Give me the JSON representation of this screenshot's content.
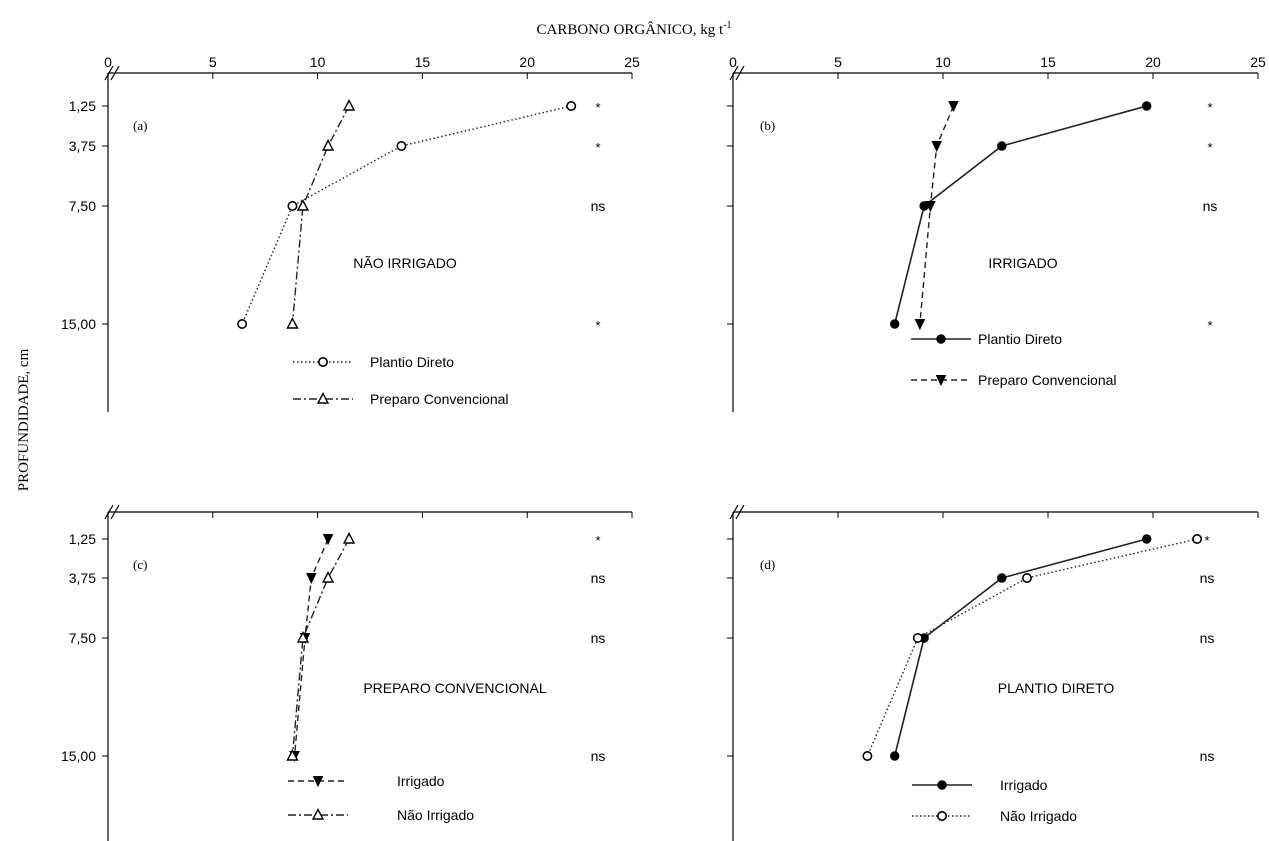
{
  "figure": {
    "xlabel_main": "CARBONO ORGÂNICO, kg t",
    "xlabel_sup": "-1",
    "ylabel": "PROFUNDIDADE, cm"
  },
  "chart_data": [
    {
      "type": "line",
      "panel_label": "(a)",
      "title": "NÃO IRRIGADO",
      "x_ticks": [
        "0",
        "5",
        "10",
        "15",
        "20",
        "25"
      ],
      "y_ticks": [
        "1,25",
        "3,75",
        "7,50",
        "15,00"
      ],
      "y": [
        1.25,
        3.75,
        7.5,
        15
      ],
      "xlim": [
        0,
        25
      ],
      "significance": [
        "*",
        "*",
        "ns",
        "*"
      ],
      "series": [
        {
          "name": "Plantio Direto",
          "x": [
            22.1,
            14.0,
            8.8,
            6.4
          ],
          "marker": "open-circle",
          "line": "dotted"
        },
        {
          "name": "Preparo Convencional",
          "x": [
            11.5,
            10.5,
            9.3,
            8.8
          ],
          "marker": "open-triangle",
          "line": "dash-dot"
        }
      ]
    },
    {
      "type": "line",
      "panel_label": "(b)",
      "title": "IRRIGADO",
      "x_ticks": [
        "0",
        "5",
        "10",
        "15",
        "20",
        "25"
      ],
      "y": [
        1.25,
        3.75,
        7.5,
        15
      ],
      "xlim": [
        0,
        25
      ],
      "significance": [
        "*",
        "*",
        "ns",
        "*"
      ],
      "series": [
        {
          "name": "Plantio Direto",
          "x": [
            19.7,
            12.8,
            9.1,
            7.7
          ],
          "marker": "filled-circle",
          "line": "solid"
        },
        {
          "name": "Preparo Convencional",
          "x": [
            10.5,
            9.7,
            9.4,
            8.9
          ],
          "marker": "filled-triangle-down",
          "line": "dashed"
        }
      ]
    },
    {
      "type": "line",
      "panel_label": "(c)",
      "title": "PREPARO CONVENCIONAL",
      "y_ticks": [
        "1,25",
        "3,75",
        "7,50",
        "15,00"
      ],
      "y": [
        1.25,
        3.75,
        7.5,
        15
      ],
      "xlim": [
        0,
        25
      ],
      "significance": [
        "*",
        "ns",
        "ns",
        "ns"
      ],
      "series": [
        {
          "name": "Irrigado",
          "x": [
            10.5,
            9.7,
            9.4,
            8.9
          ],
          "marker": "filled-triangle-down",
          "line": "dashed"
        },
        {
          "name": "Não Irrigado",
          "x": [
            11.5,
            10.5,
            9.3,
            8.8
          ],
          "marker": "open-triangle",
          "line": "dash-dot"
        }
      ]
    },
    {
      "type": "line",
      "panel_label": "(d)",
      "title": "PLANTIO DIRETO",
      "y": [
        1.25,
        3.75,
        7.5,
        15
      ],
      "xlim": [
        0,
        25
      ],
      "significance": [
        "*",
        "ns",
        "ns",
        "ns"
      ],
      "series": [
        {
          "name": "Irrigado",
          "x": [
            19.7,
            12.8,
            9.1,
            7.7
          ],
          "marker": "filled-circle",
          "line": "solid"
        },
        {
          "name": "Não Irrigado",
          "x": [
            22.1,
            14.0,
            8.8,
            6.4
          ],
          "marker": "open-circle",
          "line": "dotted"
        }
      ]
    }
  ]
}
